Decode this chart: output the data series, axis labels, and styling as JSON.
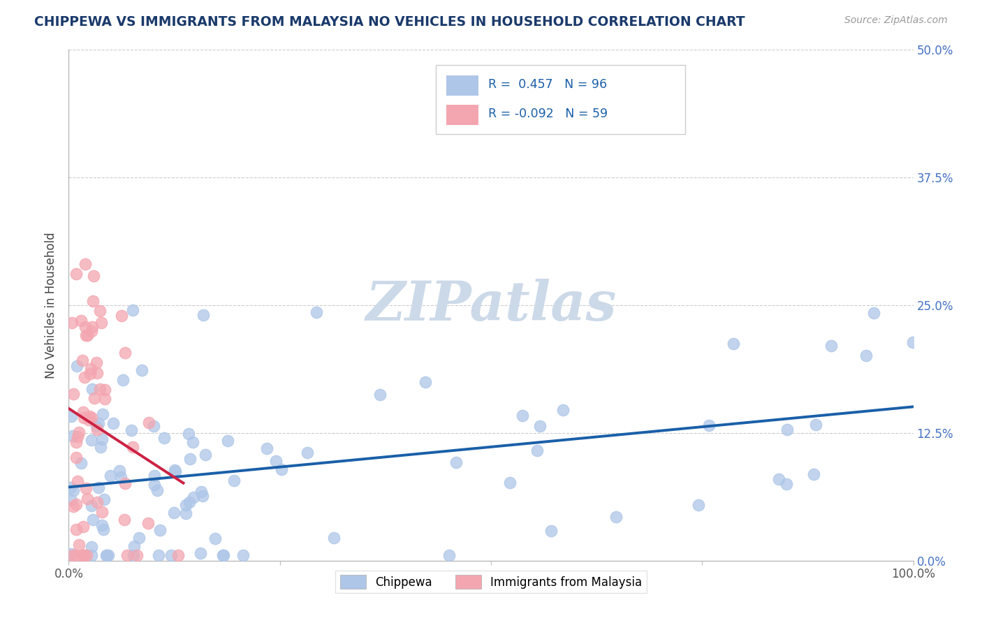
{
  "title": "CHIPPEWA VS IMMIGRANTS FROM MALAYSIA NO VEHICLES IN HOUSEHOLD CORRELATION CHART",
  "source_text": "Source: ZipAtlas.com",
  "ylabel": "No Vehicles in Household",
  "xlabel_chippewa": "Chippewa",
  "xlabel_malaysia": "Immigrants from Malaysia",
  "xlim": [
    0.0,
    1.0
  ],
  "ylim": [
    0.0,
    0.5
  ],
  "yticks": [
    0.0,
    0.125,
    0.25,
    0.375,
    0.5
  ],
  "ytick_labels": [
    "0.0%",
    "12.5%",
    "25.0%",
    "37.5%",
    "50.0%"
  ],
  "R_chippewa": 0.457,
  "N_chippewa": 96,
  "R_malaysia": -0.092,
  "N_malaysia": 59,
  "color_chippewa": "#aec6e8",
  "color_malaysia": "#f4a6b0",
  "line_color_chippewa": "#1a5fa8",
  "line_color_malaysia": "#cc2244",
  "title_color": "#1a3a6b",
  "source_color": "#999999",
  "legend_R_color": "#1a5fa8",
  "watermark_color": "#ccd9e8",
  "background_color": "#ffffff"
}
